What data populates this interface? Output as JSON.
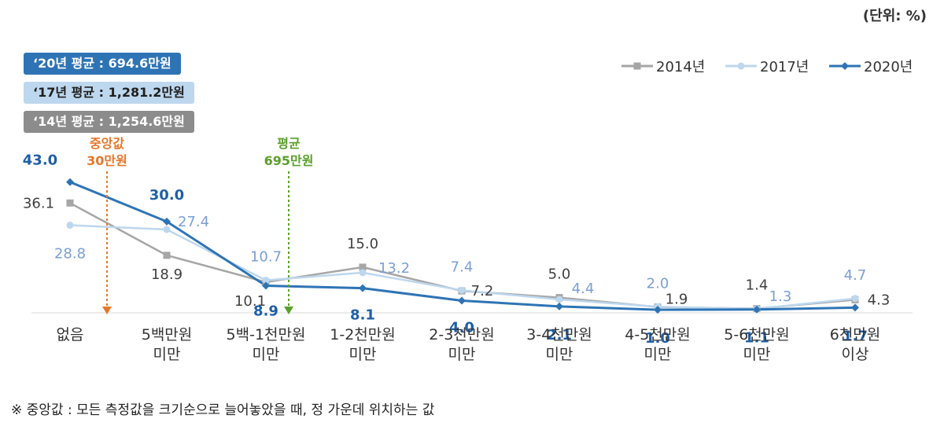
{
  "unit_label": "(단위: %)",
  "avg_boxes": [
    {
      "text": "‘20년 평균 : 694.6만원",
      "bg": "#2e74b5",
      "fg": "#ffffff"
    },
    {
      "text": "‘17년 평균 : 1,281.2만원",
      "bg": "#bdd7ee",
      "fg": "#1f1f1f"
    },
    {
      "text": "‘14년 평균 : 1,254.6만원",
      "bg": "#8c8c8c",
      "fg": "#ffffff"
    }
  ],
  "annotations": {
    "median": {
      "line1": "중앙값",
      "line2": "30만원",
      "color": "#e6782a"
    },
    "mean": {
      "line1": "평균",
      "line2": "695만원",
      "color": "#5aa02c"
    }
  },
  "footnote": "※ 중앙값 : 모든 측정값을 크기순으로 늘어놓았을 때, 정 가운데 위치하는 값",
  "chart_data": {
    "type": "line",
    "categories": [
      [
        "없음"
      ],
      [
        "5백만원",
        "미만"
      ],
      [
        "5백-1천만원",
        "미만"
      ],
      [
        "1-2천만원",
        "미만"
      ],
      [
        "2-3천만원",
        "미만"
      ],
      [
        "3-4천만원",
        "미만"
      ],
      [
        "4-5천만원",
        "미만"
      ],
      [
        "5-6천만원",
        "미만"
      ],
      [
        "6천만원",
        "이상"
      ]
    ],
    "series": [
      {
        "name": "2014년",
        "color": "#a6a6a6",
        "marker": "square",
        "values": [
          36.1,
          18.9,
          10.1,
          15.0,
          7.2,
          5.0,
          1.9,
          1.4,
          4.3
        ],
        "label_color": "#404040",
        "label_text": [
          "36.1",
          "18.9",
          "10.1",
          "15.0",
          "7.2",
          "5.0",
          "1.9",
          "1.4",
          "4.3"
        ]
      },
      {
        "name": "2017년",
        "color": "#bdd7ee",
        "marker": "circle",
        "values": [
          28.8,
          27.4,
          10.7,
          13.2,
          7.4,
          4.4,
          2.0,
          1.3,
          4.7
        ],
        "label_color": "#7a9fd6",
        "label_text": [
          "28.8",
          "27.4",
          "10.7",
          "13.2",
          "7.4",
          "4.4",
          "2.0",
          "1.3",
          "4.7"
        ]
      },
      {
        "name": "2020년",
        "color": "#2e74b5",
        "marker": "diamond",
        "values": [
          43.0,
          30.0,
          8.9,
          8.1,
          4.0,
          2.1,
          1.0,
          1.1,
          1.7
        ],
        "label_color": "#1f5fa8",
        "label_text": [
          "43.0",
          "30.0",
          "8.9",
          "8.1",
          "4.0",
          "2.1",
          "1.0",
          "1.1",
          "1.7"
        ]
      }
    ],
    "ylim": [
      0,
      50
    ],
    "grid": false,
    "legend_position": "top-right"
  }
}
